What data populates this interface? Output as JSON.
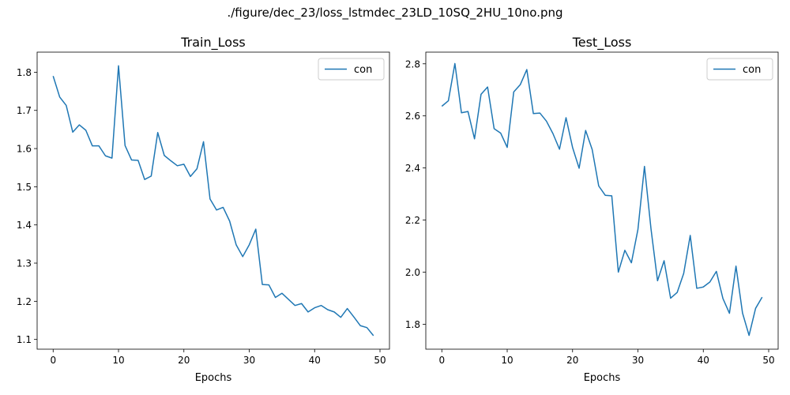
{
  "figure": {
    "suptitle": "./figure/dec_23/loss_lstmdec_23LD_10SQ_2HU_10no.png"
  },
  "chart_data": [
    {
      "type": "line",
      "title": "Train_Loss",
      "xlabel": "Epochs",
      "ylabel": "",
      "xlim": [
        -2.45,
        51.45
      ],
      "ylim": [
        1.0745,
        1.8526
      ],
      "xticks": [
        0,
        10,
        20,
        30,
        40,
        50
      ],
      "yticks": [
        1.1,
        1.2,
        1.3,
        1.4,
        1.5,
        1.6,
        1.7,
        1.8
      ],
      "grid": false,
      "legend": "top-right",
      "series": [
        {
          "name": "con",
          "color": "#1f77b4",
          "x": [
            0,
            1,
            2,
            3,
            4,
            5,
            6,
            7,
            8,
            9,
            10,
            11,
            12,
            13,
            14,
            15,
            16,
            17,
            18,
            19,
            20,
            21,
            22,
            23,
            24,
            25,
            26,
            27,
            28,
            29,
            30,
            31,
            32,
            33,
            34,
            35,
            36,
            37,
            38,
            39,
            40,
            41,
            42,
            43,
            44,
            45,
            46,
            47,
            48,
            49
          ],
          "y": [
            1.79,
            1.735,
            1.713,
            1.643,
            1.662,
            1.648,
            1.607,
            1.607,
            1.581,
            1.575,
            1.817,
            1.608,
            1.57,
            1.569,
            1.519,
            1.528,
            1.642,
            1.582,
            1.568,
            1.555,
            1.559,
            1.527,
            1.547,
            1.618,
            1.468,
            1.439,
            1.446,
            1.41,
            1.348,
            1.317,
            1.348,
            1.389,
            1.244,
            1.243,
            1.21,
            1.221,
            1.205,
            1.189,
            1.194,
            1.172,
            1.183,
            1.189,
            1.178,
            1.172,
            1.158,
            1.181,
            1.159,
            1.136,
            1.131,
            1.11
          ]
        }
      ]
    },
    {
      "type": "line",
      "title": "Test_Loss",
      "xlabel": "Epochs",
      "ylabel": "",
      "xlim": [
        -2.45,
        51.45
      ],
      "ylim": [
        1.7042,
        2.8448
      ],
      "xticks": [
        0,
        10,
        20,
        30,
        40,
        50
      ],
      "yticks": [
        1.8,
        2.0,
        2.2,
        2.4,
        2.6,
        2.8
      ],
      "grid": false,
      "legend": "top-right",
      "series": [
        {
          "name": "con",
          "color": "#1f77b4",
          "x": [
            0,
            1,
            2,
            3,
            4,
            5,
            6,
            7,
            8,
            9,
            10,
            11,
            12,
            13,
            14,
            15,
            16,
            17,
            18,
            19,
            20,
            21,
            22,
            23,
            24,
            25,
            26,
            27,
            28,
            29,
            30,
            31,
            32,
            33,
            34,
            35,
            36,
            37,
            38,
            39,
            40,
            41,
            42,
            43,
            44,
            45,
            46,
            47,
            48,
            49
          ],
          "y": [
            2.637,
            2.658,
            2.801,
            2.612,
            2.617,
            2.512,
            2.683,
            2.711,
            2.551,
            2.534,
            2.479,
            2.692,
            2.72,
            2.778,
            2.609,
            2.611,
            2.58,
            2.532,
            2.472,
            2.593,
            2.479,
            2.399,
            2.544,
            2.471,
            2.331,
            2.295,
            2.293,
            2.0,
            2.084,
            2.036,
            2.164,
            2.406,
            2.166,
            1.967,
            2.044,
            1.9,
            1.922,
            1.995,
            2.141,
            1.938,
            1.943,
            1.962,
            2.003,
            1.899,
            1.842,
            2.023,
            1.843,
            1.757,
            1.861,
            1.904
          ]
        }
      ]
    }
  ]
}
